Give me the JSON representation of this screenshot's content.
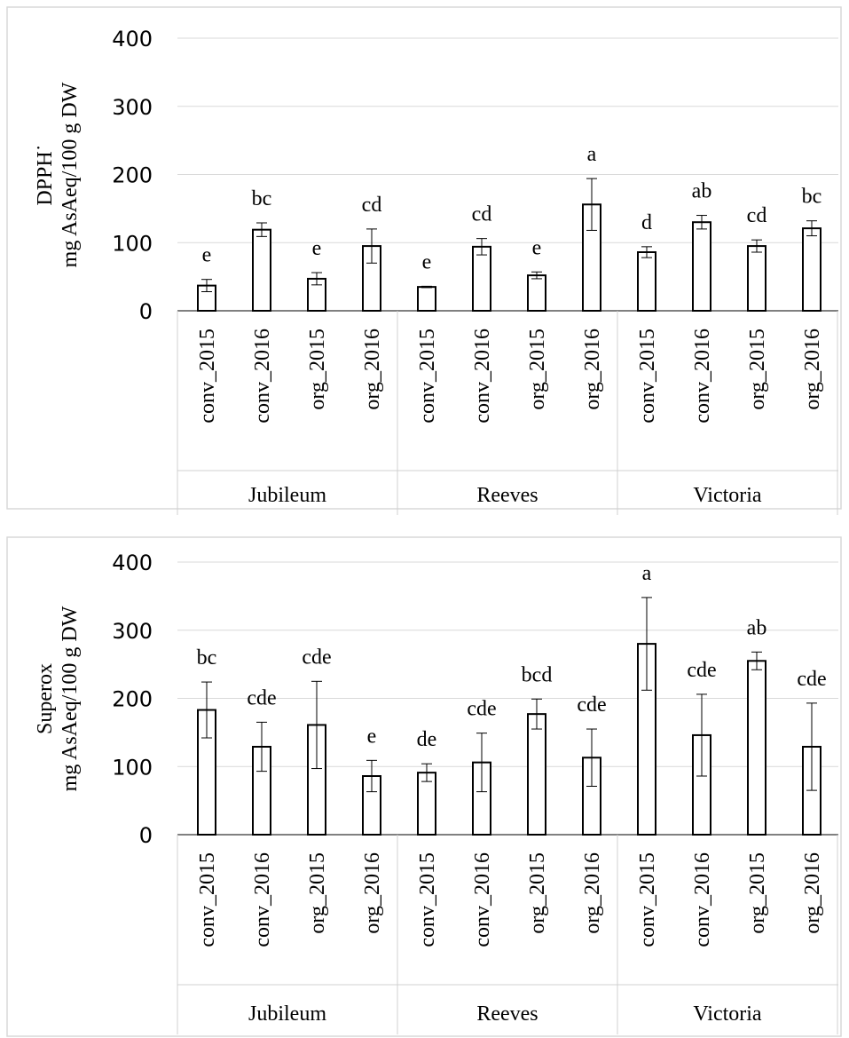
{
  "chart_data": [
    {
      "type": "bar",
      "title": "",
      "ylabel_line1": "DPPH˙",
      "ylabel_line2": "mg AsAeq/100 g DW",
      "ylim": [
        0,
        400
      ],
      "yticks": [
        0,
        100,
        200,
        300,
        400
      ],
      "grid": true,
      "groups": [
        "Jubileum",
        "Reeves",
        "Victoria"
      ],
      "categories": [
        "conv_2015",
        "conv_2016",
        "org_2015",
        "org_2016",
        "conv_2015",
        "conv_2016",
        "org_2015",
        "org_2016",
        "conv_2015",
        "conv_2016",
        "org_2015",
        "org_2016"
      ],
      "values": [
        37,
        119,
        47,
        95,
        35,
        94,
        52,
        156,
        86,
        130,
        95,
        121
      ],
      "errors": [
        9,
        10,
        9,
        25,
        1,
        12,
        5,
        38,
        8,
        10,
        9,
        11
      ],
      "letters": [
        "e",
        "bc",
        "e",
        "cd",
        "e",
        "cd",
        "e",
        "a",
        "d",
        "ab",
        "cd",
        "bc"
      ]
    },
    {
      "type": "bar",
      "title": "",
      "ylabel_line1": "Superox",
      "ylabel_line2": "mg AsAeq/100 g DW",
      "ylim": [
        0,
        400
      ],
      "yticks": [
        0,
        100,
        200,
        300,
        400
      ],
      "grid": true,
      "groups": [
        "Jubileum",
        "Reeves",
        "Victoria"
      ],
      "categories": [
        "conv_2015",
        "conv_2016",
        "org_2015",
        "org_2016",
        "conv_2015",
        "conv_2016",
        "org_2015",
        "org_2016",
        "conv_2015",
        "conv_2016",
        "org_2015",
        "org_2016"
      ],
      "values": [
        183,
        129,
        161,
        86,
        91,
        106,
        177,
        113,
        280,
        146,
        255,
        129
      ],
      "errors": [
        41,
        36,
        64,
        23,
        13,
        43,
        22,
        42,
        68,
        60,
        13,
        64
      ],
      "letters": [
        "bc",
        "cde",
        "cde",
        "e",
        "de",
        "cde",
        "bcd",
        "cde",
        "a",
        "cde",
        "ab",
        "cde"
      ]
    }
  ]
}
